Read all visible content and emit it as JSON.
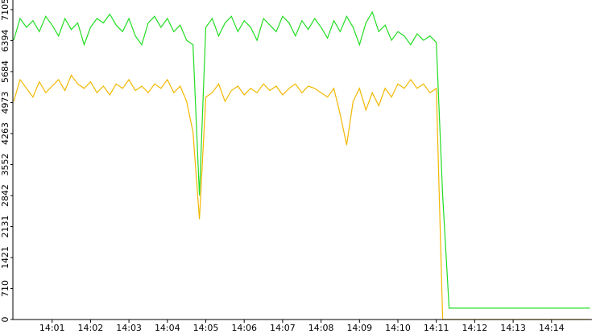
{
  "chart_data": {
    "type": "line",
    "categories": [
      null,
      null,
      null,
      null,
      null,
      null,
      "14:01",
      null,
      null,
      null,
      null,
      null,
      "14:02",
      null,
      null,
      null,
      null,
      null,
      "14:03",
      null,
      null,
      null,
      null,
      null,
      "14:04",
      null,
      null,
      null,
      null,
      null,
      "14:05",
      null,
      null,
      null,
      null,
      null,
      "14:06",
      null,
      null,
      null,
      null,
      null,
      "14:07",
      null,
      null,
      null,
      null,
      null,
      "14:08",
      null,
      null,
      null,
      null,
      null,
      "14:09",
      null,
      null,
      null,
      null,
      null,
      "14:10",
      null,
      null,
      null,
      null,
      null,
      "14:11",
      null,
      null,
      null,
      null,
      null,
      "14:12",
      null,
      null,
      null,
      null,
      null,
      "14:13",
      null,
      null,
      null,
      null,
      null,
      "14:14",
      null,
      null,
      null,
      null,
      null,
      null
    ],
    "series": [
      {
        "color": "#22dd22",
        "values": [
          6400,
          6900,
          6700,
          6850,
          6600,
          6950,
          6750,
          6500,
          6900,
          6650,
          6800,
          6300,
          6700,
          6900,
          6800,
          7000,
          6750,
          6600,
          6900,
          6500,
          6300,
          6800,
          6950,
          6700,
          6900,
          6600,
          6750,
          6400,
          6300,
          2842,
          6700,
          6900,
          6500,
          6800,
          6950,
          6600,
          6850,
          6700,
          6400,
          6900,
          6750,
          6600,
          6950,
          6800,
          6500,
          6850,
          6650,
          6900,
          6700,
          6450,
          6850,
          6600,
          6950,
          6700,
          6300,
          6800,
          7050,
          6600,
          6750,
          6400,
          6600,
          6500,
          6300,
          6550,
          6400,
          6500,
          6350,
          2842,
          260,
          260,
          260,
          260,
          260,
          260,
          260,
          260,
          260,
          260,
          260,
          260,
          260,
          260,
          260,
          260,
          260,
          260,
          260,
          260,
          260,
          260,
          260
        ]
      },
      {
        "color": "#f2b800",
        "values": [
          5000,
          5500,
          5300,
          5100,
          5450,
          5200,
          5350,
          5500,
          5250,
          5600,
          5400,
          5300,
          5450,
          5200,
          5350,
          5150,
          5400,
          5300,
          5500,
          5250,
          5350,
          5200,
          5400,
          5300,
          5500,
          5200,
          5350,
          5000,
          4300,
          2300,
          5100,
          5200,
          5400,
          5000,
          5250,
          5350,
          5150,
          5300,
          5200,
          5400,
          5250,
          5350,
          5150,
          5300,
          5400,
          5200,
          5350,
          5300,
          5200,
          5100,
          5300,
          4700,
          4000,
          5000,
          5300,
          4800,
          5200,
          4900,
          5300,
          5100,
          5400,
          5300,
          5500,
          5300,
          5400,
          5200,
          5300,
          0,
          0,
          0,
          0,
          0,
          0,
          0,
          0,
          0,
          0,
          0,
          0,
          0,
          0,
          0,
          0,
          0,
          0,
          0,
          0,
          0,
          0,
          0,
          0
        ]
      }
    ],
    "ylim": [
      0,
      7325
    ],
    "yticks": [
      0,
      710,
      1421,
      2131,
      2842,
      3552,
      4263,
      4973,
      5684,
      6394,
      7105
    ]
  }
}
